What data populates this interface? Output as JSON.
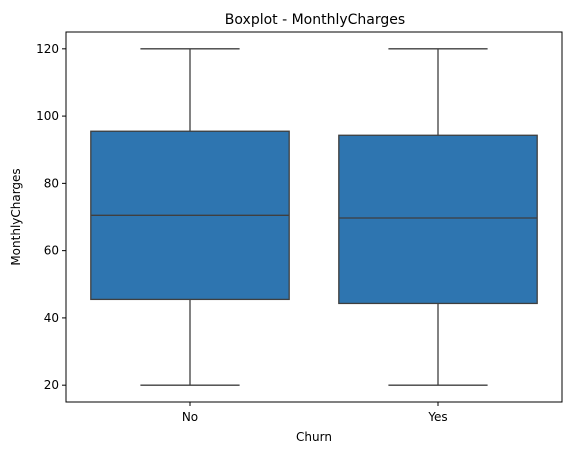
{
  "chart_data": {
    "type": "box",
    "title": "Boxplot - MonthlyCharges",
    "xlabel": "Churn",
    "ylabel": "MonthlyCharges",
    "ylim": [
      15,
      125
    ],
    "yticks": [
      20,
      40,
      60,
      80,
      100,
      120
    ],
    "grid": false,
    "color": "#2e75b0",
    "edge_color": "#3f3f3f",
    "categories": [
      "No",
      "Yes"
    ],
    "boxes": [
      {
        "category": "No",
        "min": 20,
        "q1": 45.5,
        "median": 70.5,
        "q3": 95.5,
        "max": 120
      },
      {
        "category": "Yes",
        "min": 20,
        "q1": 44.3,
        "median": 69.7,
        "q3": 94.3,
        "max": 120
      }
    ]
  }
}
